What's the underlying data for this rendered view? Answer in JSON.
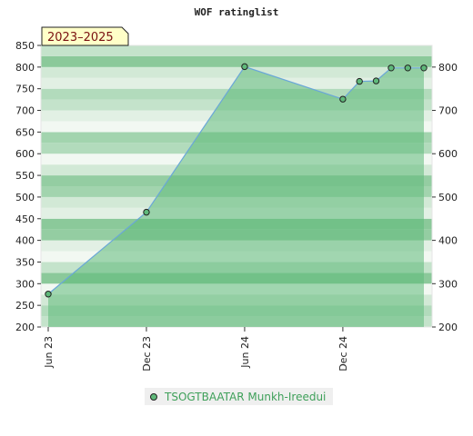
{
  "chart_data": {
    "type": "area",
    "title": "WOF ratinglist",
    "period_label": "2023–2025",
    "x_ticks": [
      "Jun 23",
      "Dec 23",
      "Jun 24",
      "Dec 24"
    ],
    "x_tick_dates": [
      "2023-06-01",
      "2023-12-01",
      "2024-06-01",
      "2024-12-01"
    ],
    "x_range": [
      "2023-06-01",
      "2025-05-01"
    ],
    "ylim": [
      200,
      850
    ],
    "y_ticks_left": [
      200,
      250,
      300,
      350,
      400,
      450,
      500,
      550,
      600,
      650,
      700,
      750,
      800,
      850
    ],
    "y_ticks_right": [
      200,
      300,
      400,
      500,
      600,
      700,
      800
    ],
    "series": [
      {
        "name": "TSOGTBAATAR Munkh-Ireedui",
        "color": "#5fb97a",
        "points": [
          {
            "x": "2023-06-01",
            "y": 276
          },
          {
            "x": "2023-12-01",
            "y": 465
          },
          {
            "x": "2024-06-01",
            "y": 801
          },
          {
            "x": "2024-12-01",
            "y": 726
          },
          {
            "x": "2025-01-01",
            "y": 767
          },
          {
            "x": "2025-02-01",
            "y": 768
          },
          {
            "x": "2025-03-01",
            "y": 798
          },
          {
            "x": "2025-04-01",
            "y": 798
          },
          {
            "x": "2025-05-01",
            "y": 798
          }
        ]
      }
    ],
    "grid": true,
    "legend_position": "bottom-center"
  }
}
